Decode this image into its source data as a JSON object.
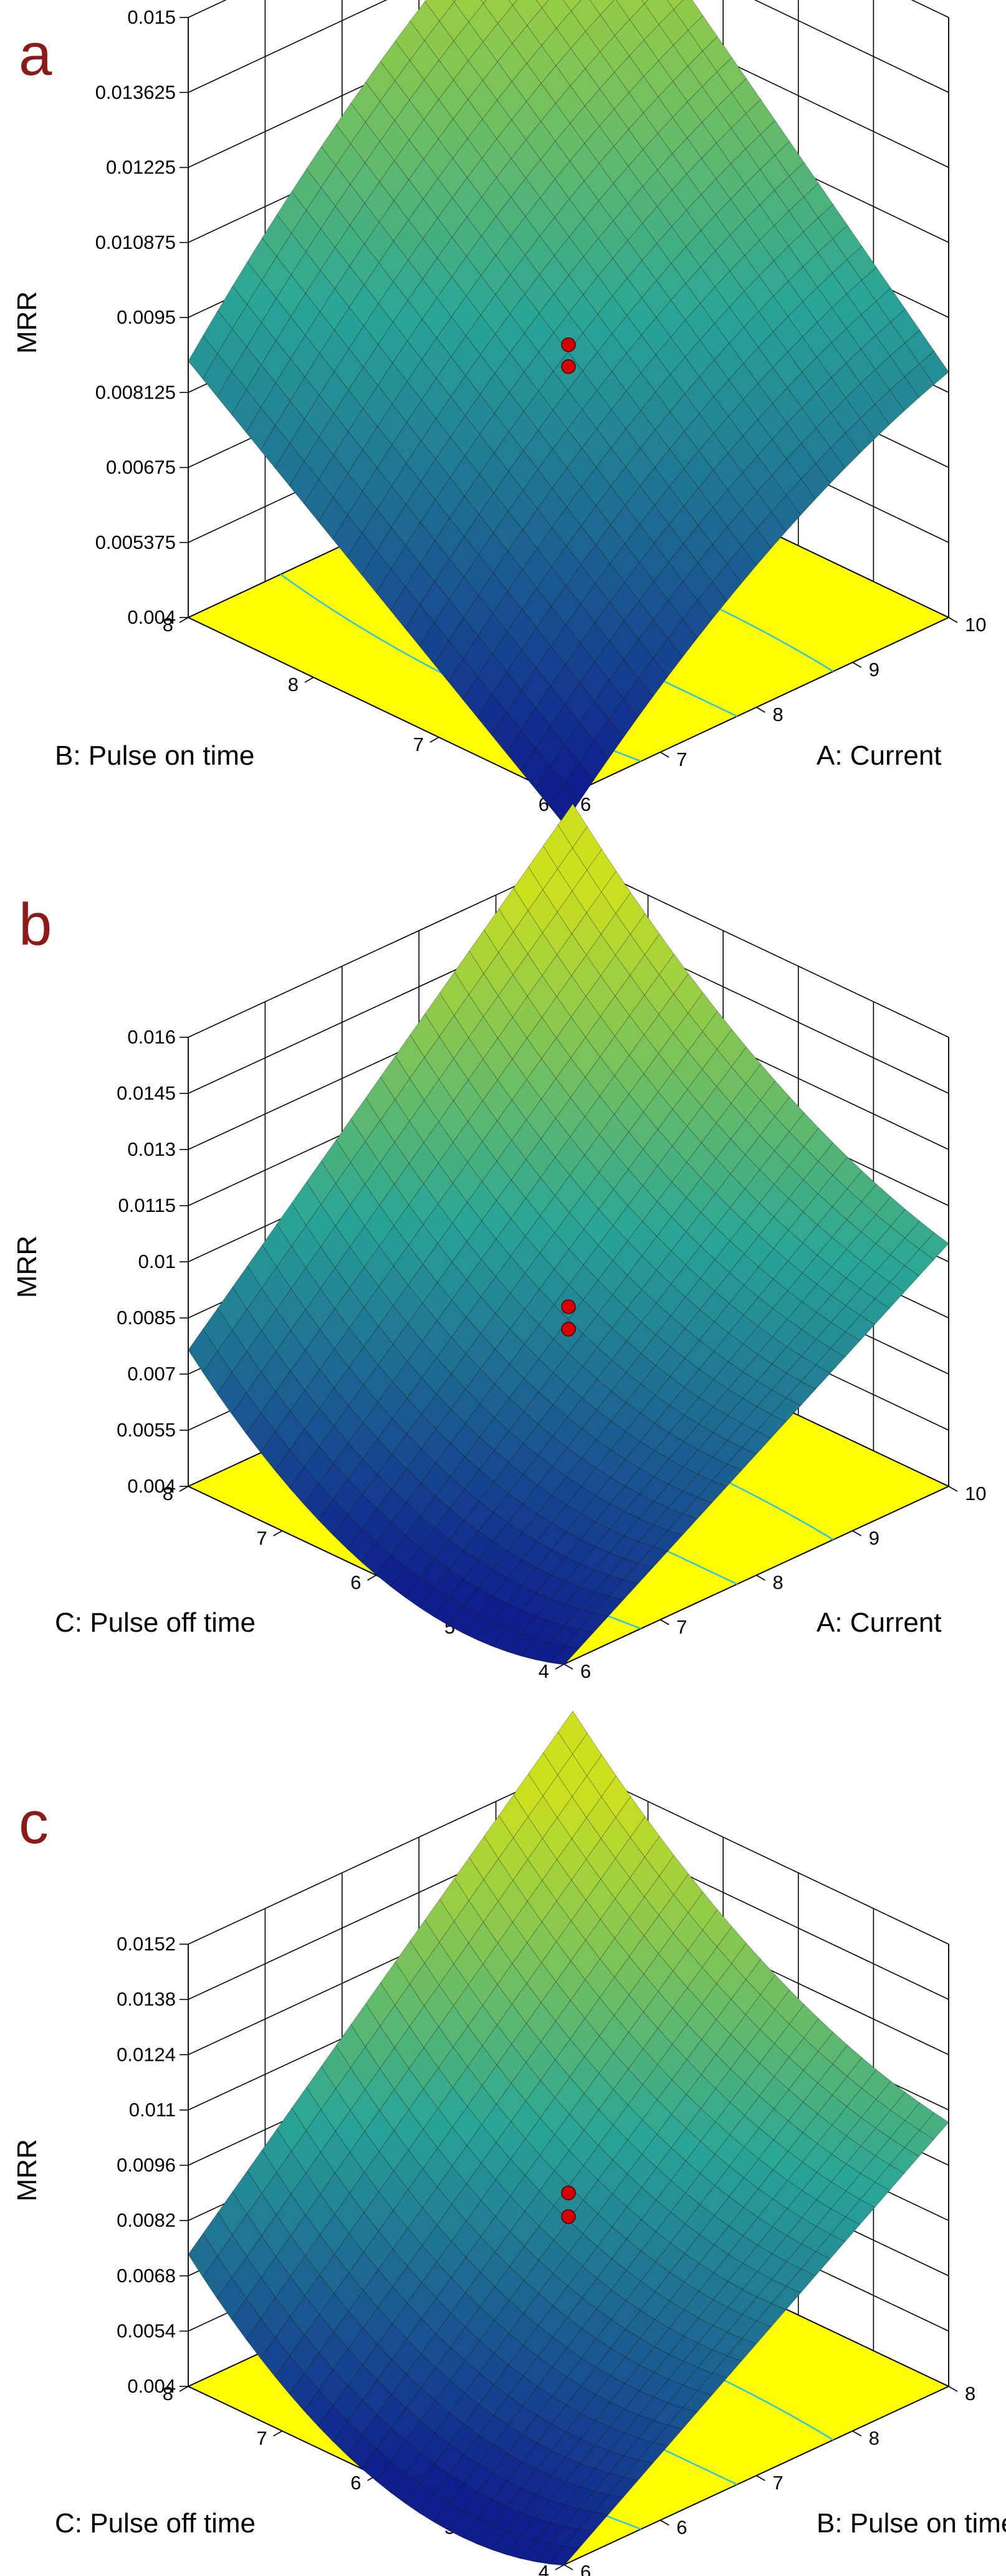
{
  "colors": {
    "panel_letter": "#8b1a1a",
    "floor": "#ffff00",
    "contour": "#33c4d6",
    "surface_low": "#0f1e8c",
    "surface_mid": "#2aa596",
    "surface_high": "#cde01e",
    "design_point": "#d50000"
  },
  "chart_data": [
    {
      "panel": "a",
      "type": "surface3d",
      "zlabel": "MRR",
      "xlabel": "A: Current",
      "ylabel": "B: Pulse on time",
      "z_ticks": [
        "0.004",
        "0.005375",
        "0.00675",
        "0.008125",
        "0.0095",
        "0.010875",
        "0.01225",
        "0.013625",
        "0.015"
      ],
      "x_ticks": [
        "6",
        "7",
        "8",
        "9",
        "10"
      ],
      "y_ticks": [
        "6",
        "7",
        "8",
        "8"
      ],
      "zlim": [
        0.004,
        0.015
      ],
      "xlim": [
        6,
        10
      ],
      "ylim": [
        6,
        8
      ],
      "corners": {
        "x_low_y_low": 0.0035,
        "x_high_y_low": 0.0085,
        "x_low_y_high": 0.0087,
        "x_high_y_high": 0.0152
      },
      "twist": 0.0012,
      "design_points": [
        0.009,
        0.0086
      ]
    },
    {
      "panel": "b",
      "type": "surface3d",
      "zlabel": "MRR",
      "xlabel": "A: Current",
      "ylabel": "C: Pulse off time",
      "z_ticks": [
        "0.004",
        "0.0055",
        "0.007",
        "0.0085",
        "0.01",
        "0.0115",
        "0.013",
        "0.0145",
        "0.016"
      ],
      "x_ticks": [
        "6",
        "7",
        "8",
        "9",
        "10"
      ],
      "y_ticks": [
        "4",
        "5",
        "6",
        "7",
        "8"
      ],
      "zlim": [
        0.004,
        0.016
      ],
      "xlim": [
        6,
        10
      ],
      "ylim": [
        4,
        8
      ],
      "corners": {
        "x_low_y_low": 0.004,
        "x_high_y_low": 0.0105,
        "x_low_y_high": 0.0055,
        "x_high_y_high": 0.0162
      },
      "curvature_y": 0.0018,
      "design_points": [
        0.0088,
        0.0082
      ]
    },
    {
      "panel": "c",
      "type": "surface3d",
      "zlabel": "MRR",
      "xlabel": "B: Pulse on time",
      "ylabel": "C: Pulse off time",
      "z_ticks": [
        "0.004",
        "0.0054",
        "0.0068",
        "0.0082",
        "0.0096",
        "0.011",
        "0.0124",
        "0.0138",
        "0.0152"
      ],
      "x_ticks": [
        "6",
        "6",
        "7",
        "8",
        "8"
      ],
      "y_ticks": [
        "4",
        "5",
        "6",
        "7",
        "8"
      ],
      "zlim": [
        0.004,
        0.0152
      ],
      "xlim": [
        6,
        8
      ],
      "ylim": [
        4,
        8
      ],
      "corners": {
        "x_low_y_low": 0.004,
        "x_high_y_low": 0.0107,
        "x_low_y_high": 0.0052,
        "x_high_y_high": 0.0153
      },
      "curvature_y": 0.0018,
      "design_points": [
        0.0089,
        0.0083
      ]
    }
  ]
}
